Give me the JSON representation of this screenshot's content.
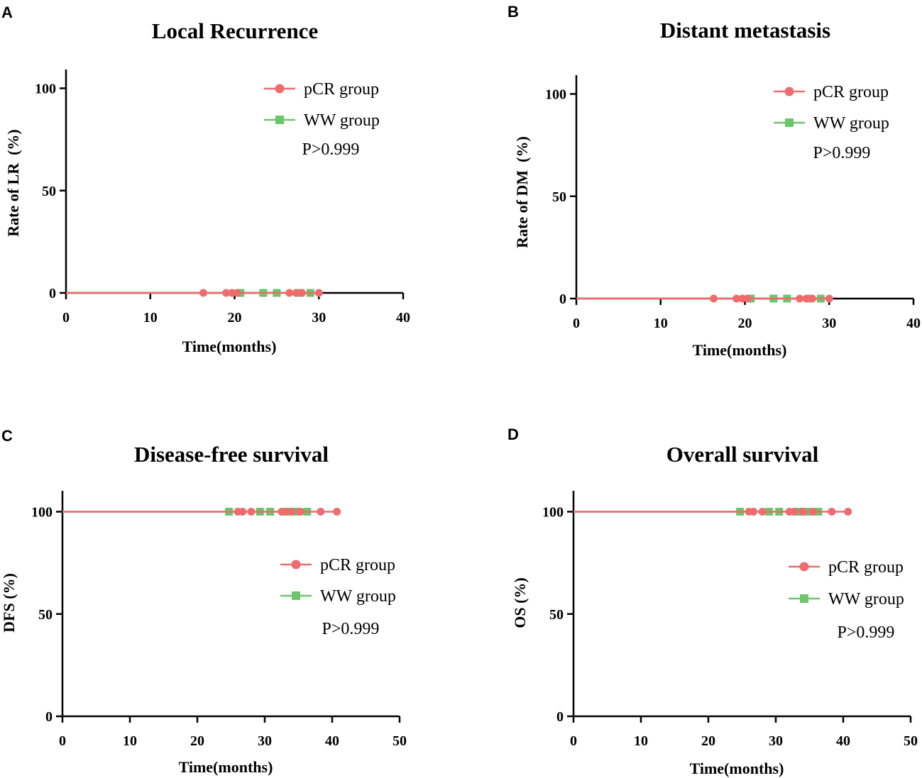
{
  "chart_data": [
    {
      "panel": "A",
      "type": "line",
      "title": "Local Recurrence",
      "xlabel": "Time(months)",
      "ylabel": "Rate of LR  (%)",
      "xlim": [
        0,
        40
      ],
      "ylim": [
        0,
        110
      ],
      "xticks": [
        0,
        10,
        20,
        30,
        40
      ],
      "yticks": [
        0,
        50,
        100
      ],
      "legend_position": "top-right",
      "pvalue": "P>0.999",
      "series": [
        {
          "name": "pCR group",
          "color": "#ee6b6e",
          "marker": "circle",
          "line": [
            [
              0,
              0
            ],
            [
              30,
              0
            ]
          ],
          "censored": [
            [
              16.3,
              0
            ],
            [
              19,
              0
            ],
            [
              19.7,
              0
            ],
            [
              20.3,
              0
            ],
            [
              26.5,
              0
            ],
            [
              27.3,
              0
            ],
            [
              28,
              0
            ],
            [
              30,
              0
            ]
          ]
        },
        {
          "name": "WW group",
          "color": "#6cc46b",
          "marker": "square",
          "line": [
            [
              0,
              0
            ],
            [
              29,
              0
            ]
          ],
          "censored": [
            [
              20.7,
              0
            ],
            [
              23.4,
              0
            ],
            [
              25,
              0
            ],
            [
              27.6,
              0
            ],
            [
              29,
              0
            ]
          ]
        }
      ]
    },
    {
      "panel": "B",
      "type": "line",
      "title": "Distant metastasis",
      "xlabel": "Time(months)",
      "ylabel": "Rate of DM  (%)",
      "xlim": [
        0,
        40
      ],
      "ylim": [
        0,
        110
      ],
      "xticks": [
        0,
        10,
        20,
        30,
        40
      ],
      "yticks": [
        0,
        50,
        100
      ],
      "legend_position": "top-right",
      "pvalue": "P>0.999",
      "series": [
        {
          "name": "pCR group",
          "color": "#ee6b6e",
          "marker": "circle",
          "line": [
            [
              0,
              0
            ],
            [
              30,
              0
            ]
          ],
          "censored": [
            [
              16.3,
              0
            ],
            [
              19,
              0
            ],
            [
              19.7,
              0
            ],
            [
              20.3,
              0
            ],
            [
              26.5,
              0
            ],
            [
              27.3,
              0
            ],
            [
              28,
              0
            ],
            [
              30,
              0
            ]
          ]
        },
        {
          "name": "WW group",
          "color": "#6cc46b",
          "marker": "square",
          "line": [
            [
              0,
              0
            ],
            [
              29,
              0
            ]
          ],
          "censored": [
            [
              20.7,
              0
            ],
            [
              23.4,
              0
            ],
            [
              25,
              0
            ],
            [
              27.6,
              0
            ],
            [
              29,
              0
            ]
          ]
        }
      ]
    },
    {
      "panel": "C",
      "type": "line",
      "title": "Disease-free survival",
      "xlabel": "Time(months)",
      "ylabel": "DFS (%)",
      "xlim": [
        0,
        50
      ],
      "ylim": [
        0,
        110
      ],
      "xticks": [
        0,
        10,
        20,
        30,
        40,
        50
      ],
      "yticks": [
        0,
        50,
        100
      ],
      "legend_position": "middle-right",
      "pvalue": "P>0.999",
      "series": [
        {
          "name": "pCR group",
          "color": "#ee6b6e",
          "marker": "circle",
          "line": [
            [
              0,
              100
            ],
            [
              40.7,
              100
            ]
          ],
          "censored": [
            [
              26,
              100
            ],
            [
              26.7,
              100
            ],
            [
              28,
              100
            ],
            [
              32.5,
              100
            ],
            [
              33,
              100
            ],
            [
              34,
              100
            ],
            [
              35.3,
              100
            ],
            [
              38.3,
              100
            ],
            [
              40.7,
              100
            ]
          ]
        },
        {
          "name": "WW group",
          "color": "#6cc46b",
          "marker": "square",
          "line": [
            [
              0,
              100
            ],
            [
              36.3,
              100
            ]
          ],
          "censored": [
            [
              24.7,
              100
            ],
            [
              29.3,
              100
            ],
            [
              30.8,
              100
            ],
            [
              33.3,
              100
            ],
            [
              34.7,
              100
            ],
            [
              36.3,
              100
            ]
          ]
        }
      ]
    },
    {
      "panel": "D",
      "type": "line",
      "title": "Overall survival",
      "xlabel": "Time(months)",
      "ylabel": "OS (%)",
      "xlim": [
        0,
        50
      ],
      "ylim": [
        0,
        110
      ],
      "xticks": [
        0,
        10,
        20,
        30,
        40,
        50
      ],
      "yticks": [
        0,
        50,
        100
      ],
      "legend_position": "middle-right",
      "pvalue": "P>0.999",
      "series": [
        {
          "name": "pCR group",
          "color": "#ee6b6e",
          "marker": "circle",
          "line": [
            [
              0,
              100
            ],
            [
              40.7,
              100
            ]
          ],
          "censored": [
            [
              26,
              100
            ],
            [
              26.7,
              100
            ],
            [
              28,
              100
            ],
            [
              32,
              100
            ],
            [
              32.7,
              100
            ],
            [
              34,
              100
            ],
            [
              35.5,
              100
            ],
            [
              38.3,
              100
            ],
            [
              40.7,
              100
            ]
          ]
        },
        {
          "name": "WW group",
          "color": "#6cc46b",
          "marker": "square",
          "line": [
            [
              0,
              100
            ],
            [
              36.3,
              100
            ]
          ],
          "censored": [
            [
              24.7,
              100
            ],
            [
              29,
              100
            ],
            [
              30.5,
              100
            ],
            [
              33.3,
              100
            ],
            [
              34.7,
              100
            ],
            [
              36.3,
              100
            ]
          ]
        }
      ]
    }
  ]
}
